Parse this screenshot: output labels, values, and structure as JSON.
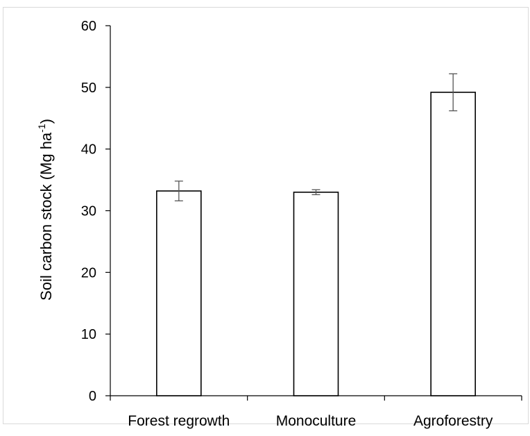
{
  "chart_data": {
    "type": "bar",
    "title": "",
    "xlabel": "",
    "ylabel": "Soil carbon stock (Mg ha",
    "ylabel_superscript": "-1",
    "ylabel_suffix": ")",
    "categories": [
      "Forest regrowth",
      "Monoculture",
      "Agroforestry"
    ],
    "values": [
      33.2,
      33.0,
      49.2
    ],
    "error": [
      1.6,
      0.4,
      3.0
    ],
    "ylim": [
      0,
      60
    ],
    "yticks": [
      "0",
      "10",
      "20",
      "30",
      "40",
      "50",
      "60"
    ],
    "grid": false,
    "legend": "none",
    "colors": {
      "bar_fill": "#ffffff",
      "bar_stroke": "#000000",
      "axis": "#000000",
      "error_bar": "#555555",
      "frame": "#d9d9d9"
    }
  }
}
